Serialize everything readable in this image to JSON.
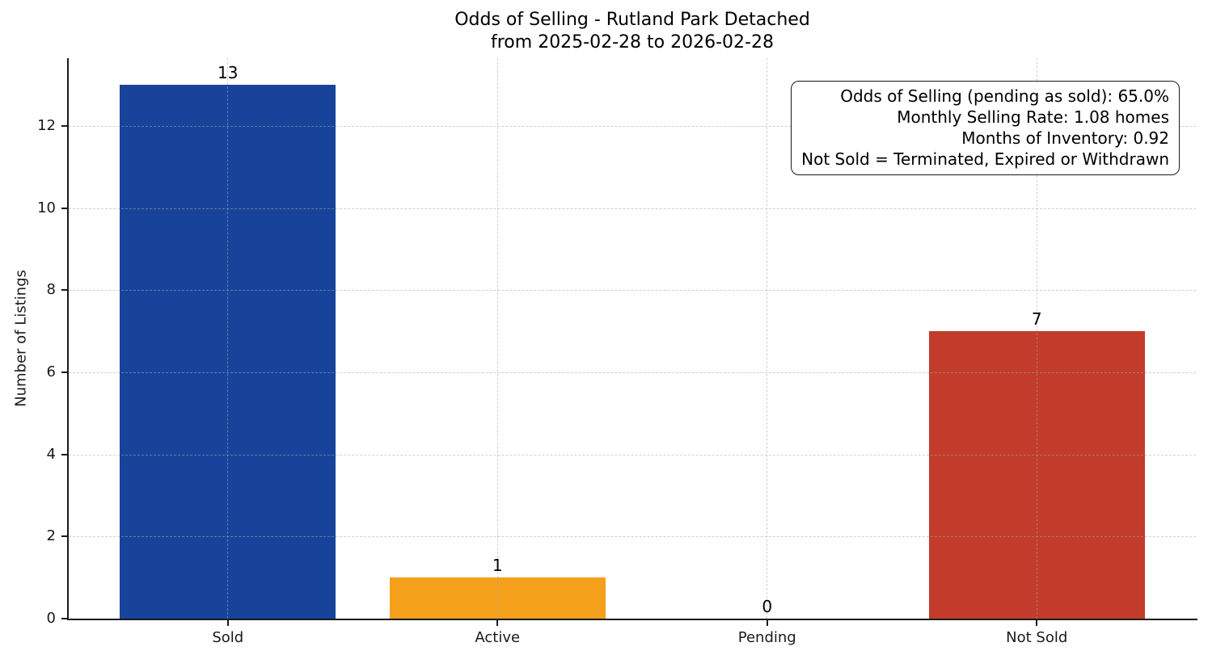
{
  "chart_data": {
    "type": "bar",
    "title": "Odds of Selling - Rutland Park Detached",
    "subtitle": "from 2025-02-28 to 2026-02-28",
    "categories": [
      "Sold",
      "Active",
      "Pending",
      "Not Sold"
    ],
    "values": [
      13,
      1,
      0,
      7
    ],
    "bar_value_labels": [
      "13",
      "1",
      "0",
      "7"
    ],
    "bar_colors": [
      "#17439B",
      "#F4A01B",
      "#8A8A8A",
      "#C23B2B"
    ],
    "xlabel": "",
    "ylabel": "Number of Listings",
    "yticks": [
      0,
      2,
      4,
      6,
      8,
      10,
      12
    ],
    "ylim": [
      0,
      13.65
    ],
    "bar_width_fraction": 0.8,
    "grid": {
      "style": "dashed",
      "axis": "both",
      "on_top": true,
      "color": "#aaaaaa"
    },
    "legend": "none",
    "annotation_lines": [
      "Odds of Selling (pending as sold): 65.0%",
      "Monthly Selling Rate: 1.08 homes",
      "Months of Inventory: 0.92",
      "Not Sold = Terminated, Expired or Withdrawn"
    ],
    "colors": {
      "background": "#ffffff",
      "axis": "#1a1a1a",
      "text": "#000000"
    }
  }
}
